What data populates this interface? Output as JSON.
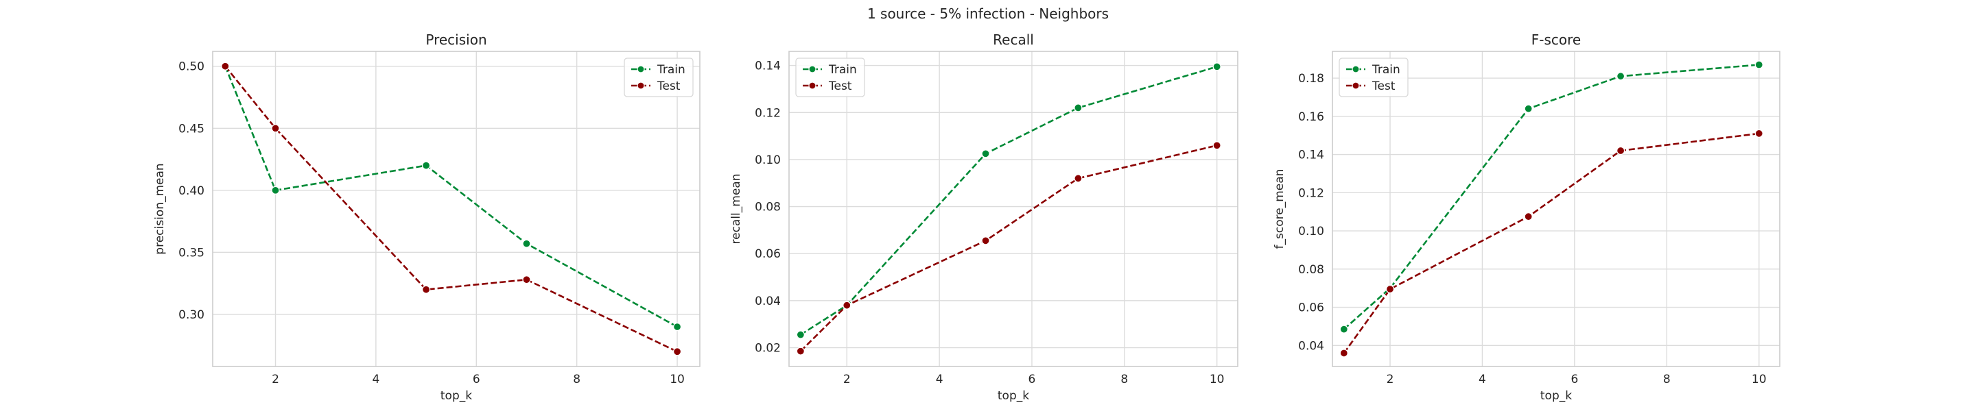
{
  "figure": {
    "suptitle": "1 source - 5% infection - Neighbors"
  },
  "chart_data": [
    {
      "type": "line",
      "title": "Precision",
      "xlabel": "top_k",
      "ylabel": "precision_mean",
      "xlim": [
        0.75,
        10.45
      ],
      "ylim": [
        0.258,
        0.512
      ],
      "xticks": [
        2,
        4,
        6,
        8,
        10
      ],
      "xtick_labels": [
        "2",
        "4",
        "6",
        "8",
        "10"
      ],
      "yticks": [
        0.3,
        0.35,
        0.4,
        0.45,
        0.5
      ],
      "ytick_labels": [
        "0.30",
        "0.35",
        "0.40",
        "0.45",
        "0.50"
      ],
      "grid": true,
      "legend_position": "top-right",
      "x": [
        1,
        2,
        5,
        7,
        10
      ],
      "series": [
        {
          "name": "Train",
          "color": "#008a36",
          "values": [
            0.5,
            0.4,
            0.42,
            0.357,
            0.29
          ]
        },
        {
          "name": "Test",
          "color": "#8b0000",
          "values": [
            0.5,
            0.45,
            0.32,
            0.328,
            0.27
          ]
        }
      ]
    },
    {
      "type": "line",
      "title": "Recall",
      "xlabel": "top_k",
      "ylabel": "recall_mean",
      "xlim": [
        0.75,
        10.45
      ],
      "ylim": [
        0.012,
        0.146
      ],
      "xticks": [
        2,
        4,
        6,
        8,
        10
      ],
      "xtick_labels": [
        "2",
        "4",
        "6",
        "8",
        "10"
      ],
      "yticks": [
        0.02,
        0.04,
        0.06,
        0.08,
        0.1,
        0.12,
        0.14
      ],
      "ytick_labels": [
        "0.02",
        "0.04",
        "0.06",
        "0.08",
        "0.10",
        "0.12",
        "0.14"
      ],
      "grid": true,
      "legend_position": "top-left",
      "x": [
        1,
        2,
        5,
        7,
        10
      ],
      "series": [
        {
          "name": "Train",
          "color": "#008a36",
          "values": [
            0.0255,
            0.038,
            0.1025,
            0.122,
            0.1395
          ]
        },
        {
          "name": "Test",
          "color": "#8b0000",
          "values": [
            0.0185,
            0.038,
            0.0655,
            0.092,
            0.106
          ]
        }
      ]
    },
    {
      "type": "line",
      "title": "F-score",
      "xlabel": "top_k",
      "ylabel": "f_score_mean",
      "xlim": [
        0.75,
        10.45
      ],
      "ylim": [
        0.029,
        0.194
      ],
      "xticks": [
        2,
        4,
        6,
        8,
        10
      ],
      "xtick_labels": [
        "2",
        "4",
        "6",
        "8",
        "10"
      ],
      "yticks": [
        0.04,
        0.06,
        0.08,
        0.1,
        0.12,
        0.14,
        0.16,
        0.18
      ],
      "ytick_labels": [
        "0.04",
        "0.06",
        "0.08",
        "0.10",
        "0.12",
        "0.14",
        "0.16",
        "0.18"
      ],
      "grid": true,
      "legend_position": "top-left",
      "x": [
        1,
        2,
        5,
        7,
        10
      ],
      "series": [
        {
          "name": "Train",
          "color": "#008a36",
          "values": [
            0.0485,
            0.07,
            0.164,
            0.181,
            0.187
          ]
        },
        {
          "name": "Test",
          "color": "#8b0000",
          "values": [
            0.036,
            0.0695,
            0.1075,
            0.142,
            0.151
          ]
        }
      ]
    }
  ]
}
